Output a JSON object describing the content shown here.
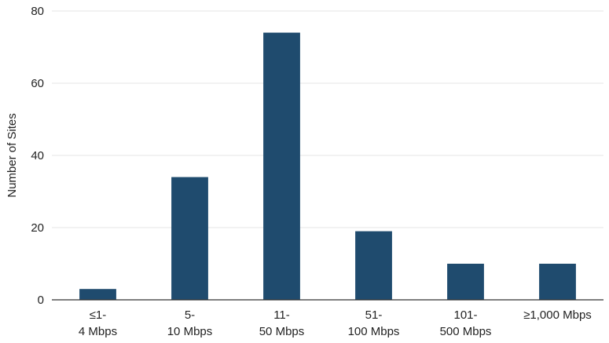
{
  "chart_data": {
    "type": "bar",
    "categories": [
      [
        "≤1-",
        "4 Mbps"
      ],
      [
        "5-",
        "10 Mbps"
      ],
      [
        "11-",
        "50 Mbps"
      ],
      [
        "51-",
        "100 Mbps"
      ],
      [
        "101-",
        "500 Mbps"
      ],
      [
        "≥1,000 Mbps"
      ]
    ],
    "values": [
      3,
      34,
      74,
      19,
      10,
      10
    ],
    "ylabel": "Number of Sites",
    "xlabel": "",
    "ylim": [
      0,
      80
    ],
    "yticks": [
      0,
      20,
      40,
      60,
      80
    ],
    "grid": true,
    "bar_color": "#1f4b6e"
  }
}
